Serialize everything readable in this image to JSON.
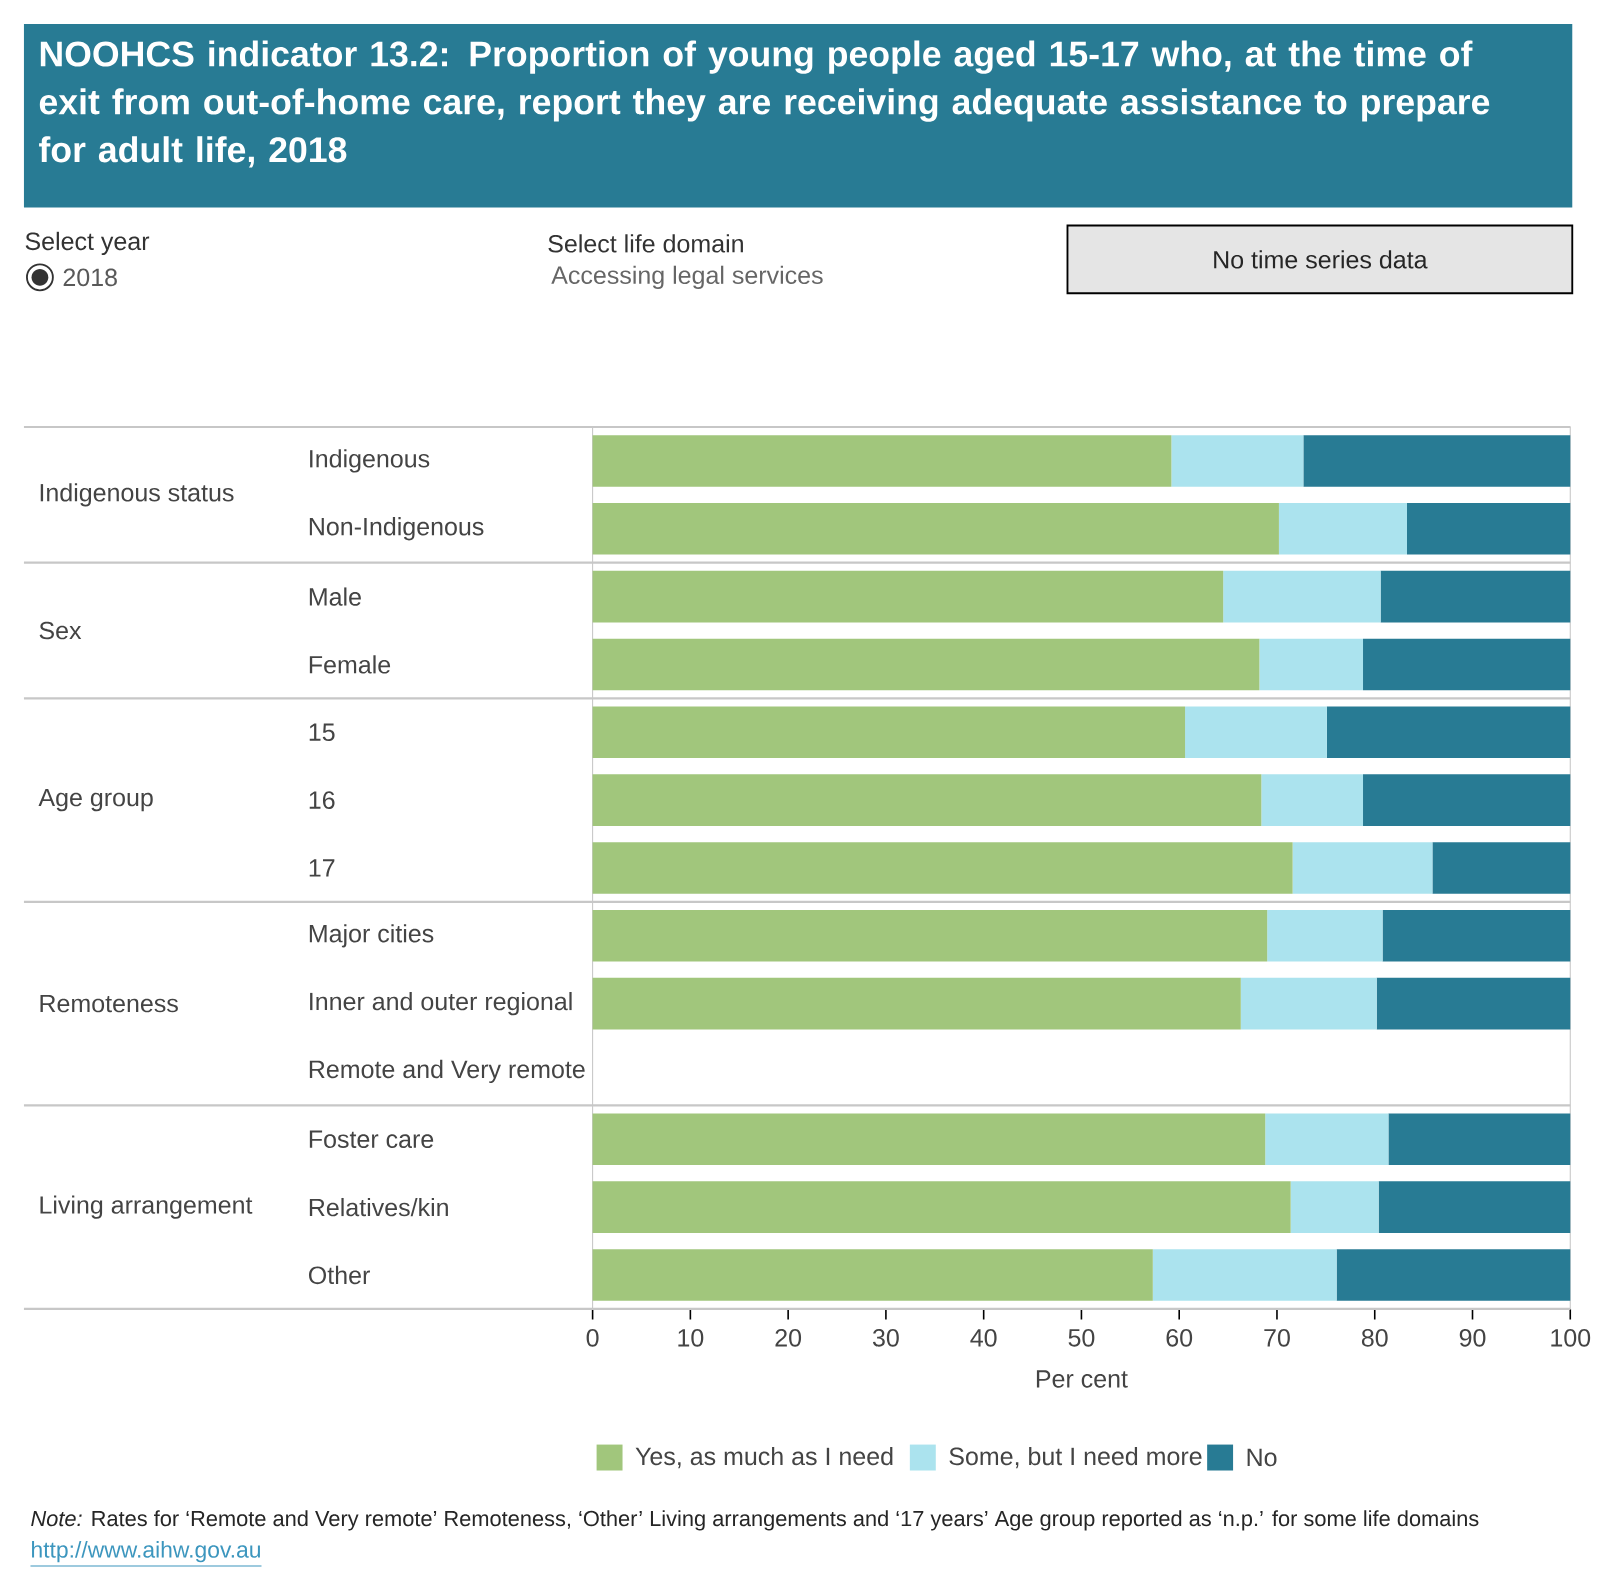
{
  "chart_data": {
    "type": "bar",
    "orientation": "horizontal",
    "stacked": true,
    "title": "NOOHCS indicator 13.2: Proportion of young people aged 15-17 who, at the time of exit from out-of-home care, report they are receiving adequate assistance to prepare for adult life, 2018",
    "categories": [
      "Indigenous",
      "Non-Indigenous",
      "Male",
      "Female",
      "15",
      "16",
      "17",
      "Major cities",
      "Inner and outer regional",
      "Remote and Very remote",
      "Foster care",
      "Relatives/kin",
      "Other"
    ],
    "series": [
      {
        "name": "Yes, as much as I need",
        "color": "#a1c67c",
        "values": [
          59.2,
          70.2,
          64.5,
          68.2,
          60.6,
          68.4,
          71.6,
          69.0,
          66.3,
          null,
          68.8,
          71.4,
          57.3
        ]
      },
      {
        "name": "Some, but I need more",
        "color": "#abe3ee",
        "values": [
          13.5,
          13.1,
          16.1,
          10.6,
          14.5,
          10.4,
          14.3,
          11.8,
          13.9,
          null,
          12.6,
          9.0,
          18.8
        ]
      },
      {
        "name": "No",
        "color": "#287b94",
        "values": [
          27.3,
          16.7,
          19.4,
          21.2,
          24.9,
          21.2,
          14.1,
          19.2,
          19.8,
          null,
          18.6,
          19.6,
          23.9
        ]
      }
    ],
    "xlabel": "Per cent",
    "xlim": [
      0,
      100
    ],
    "xticks": [
      0,
      10,
      20,
      30,
      40,
      50,
      60,
      70,
      80,
      90,
      100
    ],
    "legend": "bottom",
    "grid": false,
    "annotations": [
      "Indigenous status",
      "Sex",
      "Age group",
      "Remoteness",
      "Living arrangement",
      "Select year",
      "2018",
      "Select life domain",
      "Accessing legal services",
      "No time series data",
      "*Note:* Rates for ‘Remote and Very remote’ Remoteness, ‘Other’ Living arrangements and ‘17 years’ Age group reported as ‘n.p.’ for some life domains",
      "http://www.aihw.gov.au"
    ]
  }
}
